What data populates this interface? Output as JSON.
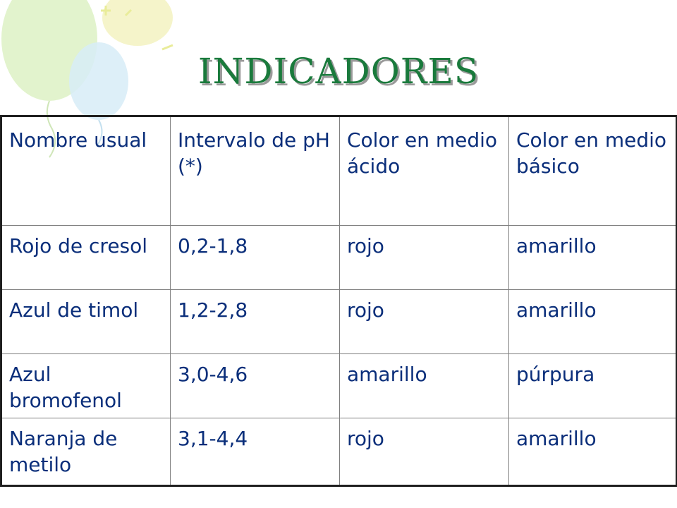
{
  "slide": {
    "title": "INDICADORES"
  },
  "table": {
    "headers": [
      "Nombre usual",
      "Intervalo de pH (*)",
      "Color en medio ácido",
      "Color en medio básico"
    ],
    "rows": [
      [
        "Rojo de cresol",
        "0,2-1,8",
        "rojo",
        "amarillo"
      ],
      [
        "Azul de timol",
        "1,2-2,8",
        "rojo",
        "amarillo"
      ],
      [
        "Azul bromofenol",
        "3,0-4,6",
        "amarillo",
        "púrpura"
      ],
      [
        "Naranja de metilo",
        "3,1-4,4",
        "rojo",
        "amarillo"
      ]
    ]
  },
  "colors": {
    "title": "#1a7a3c",
    "text": "#0a2e7a",
    "balloon_green": "#dff2c8",
    "balloon_blue": "#d7ecf7",
    "balloon_yellow": "#f4f3c4"
  }
}
